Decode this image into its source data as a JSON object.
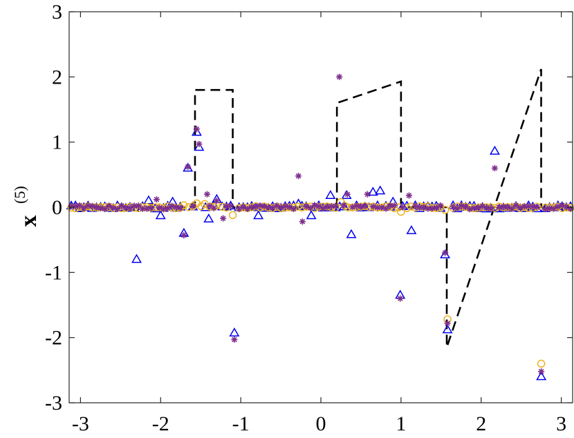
{
  "chart_data": {
    "type": "scatter",
    "title": "",
    "xlabel": "",
    "ylabel": "x",
    "ylabel_superscript": "(5)",
    "xlim": [
      -3.14159,
      3.14159
    ],
    "ylim": [
      -3,
      3
    ],
    "xticks": [
      -3,
      -2,
      -1,
      0,
      1,
      2,
      3
    ],
    "yticks": [
      -3,
      -2,
      -1,
      0,
      1,
      2,
      3
    ],
    "grid": false,
    "legend": "none",
    "colors": {
      "triangle": "#0000ee",
      "circle": "#edb120",
      "star": "#7e2f8e",
      "line": "#000000"
    },
    "reference_line": {
      "style": "dashed",
      "color": "#000000",
      "points": [
        [
          -3.14,
          0
        ],
        [
          -1.571,
          0
        ],
        [
          -1.571,
          1.8
        ],
        [
          -1.1,
          1.8
        ],
        [
          -1.1,
          0
        ],
        [
          0.2,
          0
        ],
        [
          0.2,
          1.6
        ],
        [
          1.0,
          1.93
        ],
        [
          1.0,
          0
        ],
        [
          1.571,
          0
        ],
        [
          1.571,
          -2.15
        ],
        [
          2.749,
          2.12
        ],
        [
          2.749,
          0
        ],
        [
          3.14,
          0
        ]
      ]
    },
    "series": [
      {
        "marker": "triangle",
        "color": "#0000ee",
        "outliers": [
          [
            -2.3,
            -0.8
          ],
          [
            -2.15,
            0.1
          ],
          [
            -2.0,
            -0.13
          ],
          [
            -1.85,
            0.08
          ],
          [
            -1.71,
            -0.4
          ],
          [
            -1.66,
            0.6
          ],
          [
            -1.55,
            1.15
          ],
          [
            -1.52,
            0.92
          ],
          [
            -1.4,
            -0.18
          ],
          [
            -1.3,
            0.12
          ],
          [
            -1.08,
            -1.93
          ],
          [
            -0.78,
            -0.13
          ],
          [
            -0.28,
            0.05
          ],
          [
            -0.12,
            -0.13
          ],
          [
            0.12,
            0.18
          ],
          [
            0.32,
            0.18
          ],
          [
            0.38,
            -0.42
          ],
          [
            0.65,
            0.23
          ],
          [
            0.74,
            0.25
          ],
          [
            0.9,
            0.08
          ],
          [
            0.99,
            -1.35
          ],
          [
            1.13,
            -0.36
          ],
          [
            1.55,
            -0.73
          ],
          [
            1.58,
            -1.88
          ],
          [
            2.17,
            0.86
          ],
          [
            2.75,
            -2.6
          ]
        ]
      },
      {
        "marker": "circle",
        "color": "#edb120",
        "outliers": [
          [
            -1.71,
            0.03
          ],
          [
            -1.55,
            0.06
          ],
          [
            -1.45,
            0.05
          ],
          [
            -1.3,
            0.03
          ],
          [
            -1.1,
            -0.12
          ],
          [
            0.25,
            0.08
          ],
          [
            0.3,
            0.02
          ],
          [
            1.0,
            -0.07
          ],
          [
            1.55,
            -0.04
          ],
          [
            1.58,
            -1.72
          ],
          [
            2.75,
            -2.4
          ]
        ]
      },
      {
        "marker": "star",
        "color": "#7e2f8e",
        "outliers": [
          [
            -1.71,
            -0.43
          ],
          [
            -1.66,
            0.62
          ],
          [
            -1.55,
            1.2
          ],
          [
            -1.52,
            0.97
          ],
          [
            -1.42,
            0.2
          ],
          [
            -1.3,
            0.1
          ],
          [
            -1.22,
            -0.17
          ],
          [
            -1.08,
            -2.03
          ],
          [
            -0.28,
            0.48
          ],
          [
            -0.23,
            -0.22
          ],
          [
            0.23,
            2.0
          ],
          [
            0.33,
            0.2
          ],
          [
            0.58,
            0.2
          ],
          [
            0.99,
            -1.4
          ],
          [
            1.1,
            0.18
          ],
          [
            1.55,
            -0.7
          ],
          [
            1.58,
            -1.78
          ],
          [
            2.17,
            0.6
          ],
          [
            2.75,
            -2.52
          ],
          [
            -2.05,
            0.12
          ]
        ]
      }
    ]
  }
}
